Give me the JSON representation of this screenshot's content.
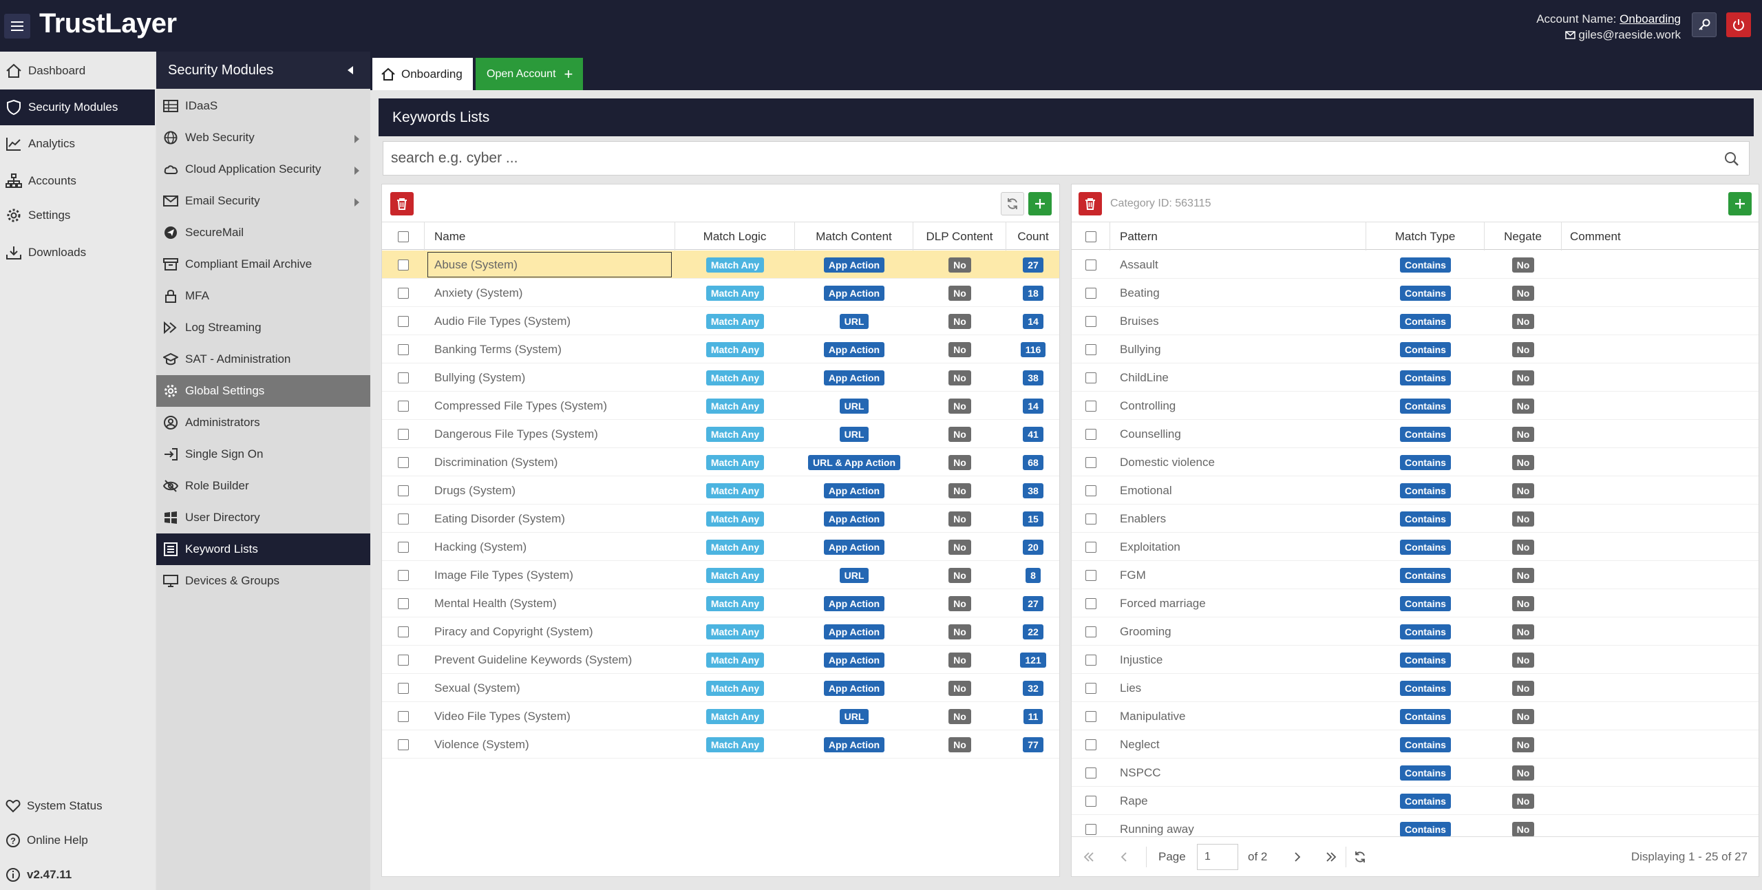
{
  "app": {
    "logo": "TrustLayer",
    "account_label": "Account Name:",
    "account_name": "Onboarding",
    "user_email": "giles@raeside.work"
  },
  "left_nav": {
    "items": [
      {
        "label": "Dashboard",
        "icon": "home-icon"
      },
      {
        "label": "Security Modules",
        "icon": "shield-icon",
        "active": true
      },
      {
        "label": "Analytics",
        "icon": "chart-icon"
      },
      {
        "label": "Accounts",
        "icon": "sitemap-icon"
      },
      {
        "label": "Settings",
        "icon": "gear-icon"
      },
      {
        "label": "Downloads",
        "icon": "download-icon"
      }
    ],
    "bottom": [
      {
        "label": "System Status",
        "icon": "heart-icon"
      },
      {
        "label": "Online Help",
        "icon": "help-icon"
      },
      {
        "label": "v2.47.11",
        "icon": "info-icon"
      }
    ]
  },
  "security_menu": {
    "title": "Security Modules",
    "items": [
      {
        "label": "IDaaS",
        "icon": "table-icon"
      },
      {
        "label": "Web Security",
        "icon": "globe-icon",
        "submenu": true
      },
      {
        "label": "Cloud Application Security",
        "icon": "cloud-icon",
        "submenu": true
      },
      {
        "label": "Email Security",
        "icon": "envelope-icon",
        "submenu": true
      },
      {
        "label": "SecureMail",
        "icon": "send-icon"
      },
      {
        "label": "Compliant Email Archive",
        "icon": "archive-icon"
      },
      {
        "label": "MFA",
        "icon": "lock-icon"
      },
      {
        "label": "Log Streaming",
        "icon": "stream-icon"
      },
      {
        "label": "SAT - Administration",
        "icon": "graduation-cap-icon"
      },
      {
        "label": "Global Settings",
        "icon": "gear-icon",
        "highlight": true
      },
      {
        "label": "Administrators",
        "icon": "user-circle-icon"
      },
      {
        "label": "Single Sign On",
        "icon": "sign-in-icon"
      },
      {
        "label": "Role Builder",
        "icon": "eye-slash-icon"
      },
      {
        "label": "User Directory",
        "icon": "windows-icon"
      },
      {
        "label": "Keyword Lists",
        "icon": "list-icon",
        "active": true
      },
      {
        "label": "Devices & Groups",
        "icon": "monitor-icon"
      }
    ]
  },
  "tabs": {
    "home_tab": "Onboarding",
    "open_account": "Open Account"
  },
  "page": {
    "title": "Keywords Lists",
    "search_placeholder": "search e.g. cyber ..."
  },
  "lists_table": {
    "columns": [
      "Name",
      "Match Logic",
      "Match Content",
      "DLP Content",
      "Count"
    ],
    "rows": [
      {
        "name": "Abuse (System)",
        "logic": "Match Any",
        "content": "App Action",
        "dlp": "No",
        "count": "27",
        "selected": true
      },
      {
        "name": "Anxiety (System)",
        "logic": "Match Any",
        "content": "App Action",
        "dlp": "No",
        "count": "18"
      },
      {
        "name": "Audio File Types (System)",
        "logic": "Match Any",
        "content": "URL",
        "dlp": "No",
        "count": "14"
      },
      {
        "name": "Banking Terms (System)",
        "logic": "Match Any",
        "content": "App Action",
        "dlp": "No",
        "count": "116"
      },
      {
        "name": "Bullying (System)",
        "logic": "Match Any",
        "content": "App Action",
        "dlp": "No",
        "count": "38"
      },
      {
        "name": "Compressed File Types (System)",
        "logic": "Match Any",
        "content": "URL",
        "dlp": "No",
        "count": "14"
      },
      {
        "name": "Dangerous File Types (System)",
        "logic": "Match Any",
        "content": "URL",
        "dlp": "No",
        "count": "41"
      },
      {
        "name": "Discrimination (System)",
        "logic": "Match Any",
        "content": "URL & App Action",
        "dlp": "No",
        "count": "68"
      },
      {
        "name": "Drugs (System)",
        "logic": "Match Any",
        "content": "App Action",
        "dlp": "No",
        "count": "38"
      },
      {
        "name": "Eating Disorder (System)",
        "logic": "Match Any",
        "content": "App Action",
        "dlp": "No",
        "count": "15"
      },
      {
        "name": "Hacking (System)",
        "logic": "Match Any",
        "content": "App Action",
        "dlp": "No",
        "count": "20"
      },
      {
        "name": "Image File Types (System)",
        "logic": "Match Any",
        "content": "URL",
        "dlp": "No",
        "count": "8"
      },
      {
        "name": "Mental Health (System)",
        "logic": "Match Any",
        "content": "App Action",
        "dlp": "No",
        "count": "27"
      },
      {
        "name": "Piracy and Copyright (System)",
        "logic": "Match Any",
        "content": "App Action",
        "dlp": "No",
        "count": "22"
      },
      {
        "name": "Prevent Guideline Keywords (System)",
        "logic": "Match Any",
        "content": "App Action",
        "dlp": "No",
        "count": "121"
      },
      {
        "name": "Sexual (System)",
        "logic": "Match Any",
        "content": "App Action",
        "dlp": "No",
        "count": "32"
      },
      {
        "name": "Video File Types (System)",
        "logic": "Match Any",
        "content": "URL",
        "dlp": "No",
        "count": "11"
      },
      {
        "name": "Violence (System)",
        "logic": "Match Any",
        "content": "App Action",
        "dlp": "No",
        "count": "77"
      }
    ]
  },
  "patterns_table": {
    "category_placeholder": "Category ID: 563115",
    "columns": [
      "Pattern",
      "Match Type",
      "Negate",
      "Comment"
    ],
    "rows": [
      {
        "pattern": "Assault",
        "type": "Contains",
        "negate": "No",
        "comment": ""
      },
      {
        "pattern": "Beating",
        "type": "Contains",
        "negate": "No",
        "comment": ""
      },
      {
        "pattern": "Bruises",
        "type": "Contains",
        "negate": "No",
        "comment": ""
      },
      {
        "pattern": "Bullying",
        "type": "Contains",
        "negate": "No",
        "comment": ""
      },
      {
        "pattern": "ChildLine",
        "type": "Contains",
        "negate": "No",
        "comment": ""
      },
      {
        "pattern": "Controlling",
        "type": "Contains",
        "negate": "No",
        "comment": ""
      },
      {
        "pattern": "Counselling",
        "type": "Contains",
        "negate": "No",
        "comment": ""
      },
      {
        "pattern": "Domestic violence",
        "type": "Contains",
        "negate": "No",
        "comment": ""
      },
      {
        "pattern": "Emotional",
        "type": "Contains",
        "negate": "No",
        "comment": ""
      },
      {
        "pattern": "Enablers",
        "type": "Contains",
        "negate": "No",
        "comment": ""
      },
      {
        "pattern": "Exploitation",
        "type": "Contains",
        "negate": "No",
        "comment": ""
      },
      {
        "pattern": "FGM",
        "type": "Contains",
        "negate": "No",
        "comment": ""
      },
      {
        "pattern": "Forced marriage",
        "type": "Contains",
        "negate": "No",
        "comment": ""
      },
      {
        "pattern": "Grooming",
        "type": "Contains",
        "negate": "No",
        "comment": ""
      },
      {
        "pattern": "Injustice",
        "type": "Contains",
        "negate": "No",
        "comment": ""
      },
      {
        "pattern": "Lies",
        "type": "Contains",
        "negate": "No",
        "comment": ""
      },
      {
        "pattern": "Manipulative",
        "type": "Contains",
        "negate": "No",
        "comment": ""
      },
      {
        "pattern": "Neglect",
        "type": "Contains",
        "negate": "No",
        "comment": ""
      },
      {
        "pattern": "NSPCC",
        "type": "Contains",
        "negate": "No",
        "comment": ""
      },
      {
        "pattern": "Rape",
        "type": "Contains",
        "negate": "No",
        "comment": ""
      },
      {
        "pattern": "Running away",
        "type": "Contains",
        "negate": "No",
        "comment": ""
      }
    ],
    "pager": {
      "page_label": "Page",
      "page_value": "1",
      "of_label": "of 2",
      "display_text": "Displaying 1 - 25 of 27"
    }
  },
  "colors": {
    "navy": "#1c1f33",
    "green": "#2b9a3a",
    "red": "#c9262a",
    "badge_light_blue": "#4cb4e0",
    "badge_blue": "#2467b3",
    "badge_gray": "#6c6c6c",
    "selected_row": "#fdeaaa"
  }
}
